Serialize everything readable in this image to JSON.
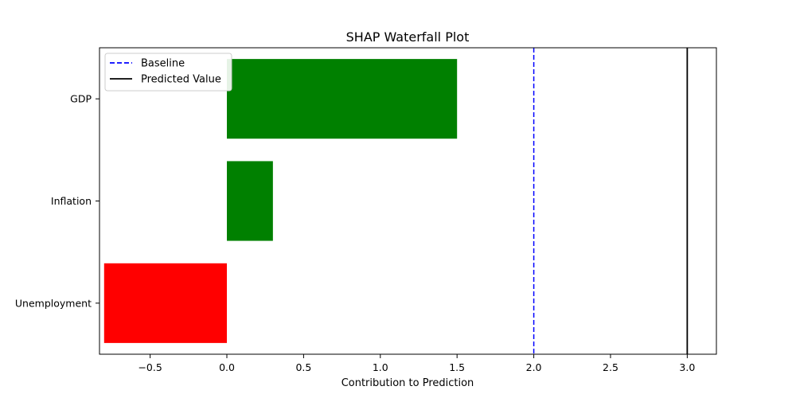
{
  "chart_data": {
    "type": "bar",
    "orientation": "horizontal",
    "title": "SHAP Waterfall Plot",
    "xlabel": "Contribution to Prediction",
    "ylabel": "",
    "categories": [
      "GDP",
      "Inflation",
      "Unemployment"
    ],
    "values": [
      1.5,
      0.3,
      -0.8
    ],
    "bar_colors": [
      "#008000",
      "#008000",
      "#ff0000"
    ],
    "xlim": [
      -0.83,
      3.19
    ],
    "xticks": [
      -0.5,
      0.0,
      0.5,
      1.0,
      1.5,
      2.0,
      2.5,
      3.0
    ],
    "xtick_labels": [
      "−0.5",
      "0.0",
      "0.5",
      "1.0",
      "1.5",
      "2.0",
      "2.5",
      "3.0"
    ],
    "baseline": 2.0,
    "baseline_color": "#0000ff",
    "predicted_value": 3.0,
    "predicted_color": "#000000",
    "legend": {
      "location": "upper-left",
      "entries": [
        {
          "label": "Baseline",
          "style": "dashed",
          "color": "#0000ff"
        },
        {
          "label": "Predicted Value",
          "style": "solid",
          "color": "#000000"
        }
      ]
    },
    "grid": false
  }
}
